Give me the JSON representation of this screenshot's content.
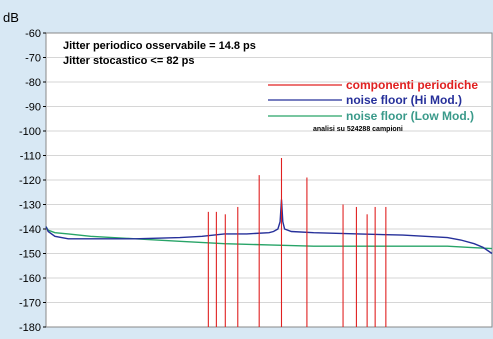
{
  "chart_data": {
    "type": "line",
    "unit_label": "dB",
    "ylim": [
      -180,
      -60
    ],
    "y_ticks": [
      "-60",
      "-70",
      "-80",
      "-90",
      "-100",
      "-110",
      "-120",
      "-130",
      "-140",
      "-150",
      "-160",
      "-170",
      "-180"
    ],
    "y_tick_values": [
      -60,
      -70,
      -80,
      -90,
      -100,
      -110,
      -120,
      -130,
      -140,
      -150,
      -160,
      -170,
      -180
    ],
    "xlim": [
      0,
      1
    ],
    "grid": true,
    "legend_position": "top-right",
    "annotations": [
      "Jitter  periodico osservabile = 14.8 ps",
      "Jitter stocastico <=  82 ps"
    ],
    "note": "analisi su 524288 campioni",
    "series": [
      {
        "name": "componenti  periodiche",
        "color": "#e02020",
        "type": "spikes",
        "x": [
          0.364,
          0.382,
          0.402,
          0.43,
          0.478,
          0.528,
          0.585,
          0.666,
          0.696,
          0.72,
          0.738,
          0.762
        ],
        "values": [
          -133,
          -133,
          -134,
          -131,
          -118,
          -111,
          -119,
          -130,
          -131,
          -134,
          -131,
          -131
        ]
      },
      {
        "name": "noise floor (Hi Mod.)",
        "color": "#26309a",
        "type": "line",
        "x": [
          0.0,
          0.005,
          0.02,
          0.05,
          0.1,
          0.2,
          0.3,
          0.35,
          0.4,
          0.45,
          0.5,
          0.51,
          0.52,
          0.525,
          0.528,
          0.531,
          0.535,
          0.55,
          0.6,
          0.7,
          0.8,
          0.85,
          0.9,
          0.93,
          0.96,
          0.98,
          1.0
        ],
        "values": [
          -139,
          -141,
          -143,
          -144,
          -144,
          -144,
          -143.5,
          -143,
          -142,
          -142,
          -141.5,
          -141,
          -140,
          -137,
          -128,
          -137,
          -140,
          -141,
          -141.5,
          -142,
          -142.5,
          -143,
          -143.5,
          -144.5,
          -146,
          -147.5,
          -150
        ]
      },
      {
        "name": "noise floor (Low Mod.)",
        "color": "#28a468",
        "type": "line",
        "x": [
          0.0,
          0.005,
          0.02,
          0.05,
          0.1,
          0.2,
          0.3,
          0.4,
          0.5,
          0.6,
          0.7,
          0.8,
          0.9,
          0.95,
          1.0
        ],
        "values": [
          -139,
          -140.5,
          -141.5,
          -142,
          -143,
          -144,
          -145,
          -146,
          -146.5,
          -147,
          -147,
          -147,
          -147,
          -147.5,
          -148
        ]
      }
    ]
  }
}
